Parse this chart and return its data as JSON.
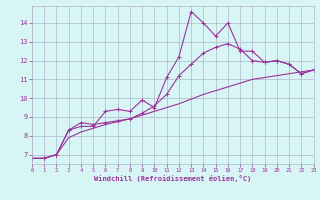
{
  "x_values": [
    0,
    1,
    2,
    3,
    4,
    5,
    6,
    7,
    8,
    9,
    10,
    11,
    12,
    13,
    14,
    15,
    16,
    17,
    18,
    19,
    20,
    21,
    22,
    23
  ],
  "line_jagged": [
    6.8,
    6.8,
    7.0,
    8.3,
    8.5,
    8.5,
    9.3,
    9.4,
    9.3,
    9.9,
    9.5,
    11.1,
    12.2,
    14.6,
    14.0,
    13.3,
    14.0,
    12.5,
    12.5,
    11.9,
    12.0,
    11.8,
    11.3,
    11.5
  ],
  "line_mid": [
    6.8,
    6.8,
    7.0,
    8.3,
    8.7,
    8.6,
    8.7,
    8.8,
    8.9,
    9.2,
    9.6,
    10.2,
    11.2,
    11.8,
    12.4,
    12.7,
    12.9,
    12.6,
    12.0,
    11.9,
    12.0,
    11.8,
    11.3,
    11.5
  ],
  "line_smooth": [
    6.8,
    6.8,
    7.0,
    7.9,
    8.2,
    8.4,
    8.6,
    8.75,
    8.9,
    9.1,
    9.3,
    9.5,
    9.7,
    9.95,
    10.2,
    10.4,
    10.6,
    10.8,
    11.0,
    11.1,
    11.2,
    11.3,
    11.4,
    11.5
  ],
  "line_color": "#993399",
  "bg_color": "#d8f5f5",
  "grid_color": "#b0b8cc",
  "xlabel": "Windchill (Refroidissement éolien,°C)",
  "ylim": [
    6.5,
    14.9
  ],
  "xlim": [
    0,
    23
  ],
  "yticks": [
    7,
    8,
    9,
    10,
    11,
    12,
    13,
    14
  ],
  "xticks": [
    0,
    1,
    2,
    3,
    4,
    5,
    6,
    7,
    8,
    9,
    10,
    11,
    12,
    13,
    14,
    15,
    16,
    17,
    18,
    19,
    20,
    21,
    22,
    23
  ],
  "figsize": [
    3.2,
    2.0
  ],
  "dpi": 100
}
